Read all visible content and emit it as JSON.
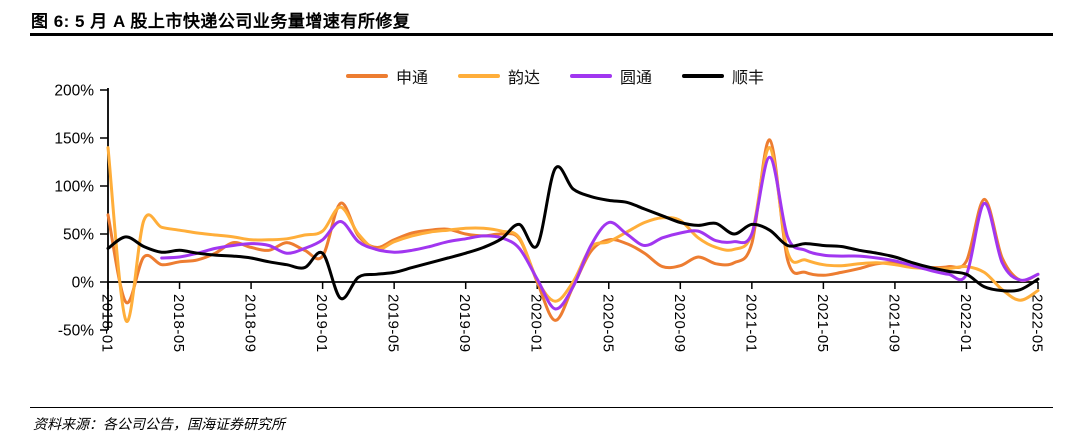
{
  "page": {
    "title": "图 6: 5 月 A 股上市快递公司业务量增速有所修复",
    "source": "资料来源：各公司公告，国海证券研究所"
  },
  "chart_data": {
    "type": "line",
    "title": "5 月 A 股上市快递公司业务量增速有所修复",
    "xlabel": "",
    "ylabel": "",
    "y_unit": "%",
    "ylim": [
      -50,
      200
    ],
    "y_tick_values": [
      200,
      150,
      100,
      50,
      0,
      -50
    ],
    "y_tick_labels": [
      "200%",
      "150%",
      "100%",
      "50%",
      "0%",
      "-50%"
    ],
    "x_tick_step": 4,
    "x_tick_labels": [
      "2018-01",
      "2018-05",
      "2018-09",
      "2019-01",
      "2019-05",
      "2019-09",
      "2020-01",
      "2020-05",
      "2020-09",
      "2021-01",
      "2021-05",
      "2021-09",
      "2022-01",
      "2022-05"
    ],
    "grid": false,
    "legend_position": "top",
    "x": [
      "2018-01",
      "2018-02",
      "2018-03",
      "2018-04",
      "2018-05",
      "2018-06",
      "2018-07",
      "2018-08",
      "2018-09",
      "2018-10",
      "2018-11",
      "2018-12",
      "2019-01",
      "2019-02",
      "2019-03",
      "2019-04",
      "2019-05",
      "2019-06",
      "2019-07",
      "2019-08",
      "2019-09",
      "2019-10",
      "2019-11",
      "2019-12",
      "2020-01",
      "2020-02",
      "2020-03",
      "2020-04",
      "2020-05",
      "2020-06",
      "2020-07",
      "2020-08",
      "2020-09",
      "2020-10",
      "2020-11",
      "2020-12",
      "2021-01",
      "2021-02",
      "2021-03",
      "2021-04",
      "2021-05",
      "2021-06",
      "2021-07",
      "2021-08",
      "2021-09",
      "2021-10",
      "2021-11",
      "2021-12",
      "2022-01",
      "2022-02",
      "2022-03",
      "2022-04",
      "2022-05"
    ],
    "series": [
      {
        "id": "shentong",
        "name": "申通",
        "color": "#ED7D31",
        "values": [
          70,
          -21,
          26,
          18,
          21,
          23,
          30,
          41,
          36,
          33,
          41,
          33,
          27,
          82,
          48,
          36,
          44,
          51,
          54,
          55,
          50,
          48,
          50,
          45,
          0,
          -40,
          -5,
          32,
          44,
          40,
          30,
          16,
          17,
          26,
          19,
          20,
          40,
          148,
          23,
          10,
          7,
          10,
          14,
          19,
          20,
          17,
          15,
          16,
          22,
          86,
          25,
          2,
          8
        ]
      },
      {
        "id": "yunda",
        "name": "韵达",
        "color": "#FFAE3A",
        "values": [
          140,
          -40,
          64,
          57,
          54,
          51,
          49,
          47,
          44,
          44,
          45,
          49,
          53,
          78,
          50,
          34,
          42,
          48,
          52,
          54,
          56,
          56,
          53,
          46,
          2,
          -20,
          0,
          36,
          42,
          52,
          62,
          67,
          64,
          46,
          36,
          34,
          50,
          140,
          31,
          23,
          18,
          17,
          19,
          20,
          18,
          15,
          14,
          14,
          16,
          10,
          -8,
          -19,
          -9
        ]
      },
      {
        "id": "yuantong",
        "name": "圆通",
        "color": "#A136F0",
        "values": [
          null,
          null,
          null,
          25,
          26,
          30,
          35,
          38,
          40,
          38,
          30,
          35,
          44,
          63,
          42,
          34,
          31,
          33,
          37,
          42,
          45,
          48,
          46,
          35,
          3,
          -28,
          -5,
          38,
          62,
          50,
          38,
          46,
          51,
          53,
          43,
          42,
          50,
          130,
          47,
          33,
          28,
          27,
          27,
          25,
          22,
          17,
          12,
          8,
          8,
          82,
          20,
          2,
          8
        ]
      },
      {
        "id": "shunfeng",
        "name": "顺丰",
        "color": "#000000",
        "values": [
          35,
          47,
          37,
          31,
          33,
          30,
          28,
          27,
          25,
          21,
          18,
          15,
          30,
          -17,
          5,
          8,
          10,
          15,
          20,
          25,
          30,
          36,
          45,
          60,
          38,
          118,
          97,
          89,
          85,
          83,
          76,
          69,
          62,
          59,
          61,
          50,
          60,
          54,
          38,
          40,
          38,
          37,
          33,
          30,
          26,
          20,
          15,
          11,
          8,
          -5,
          -9,
          -8,
          3
        ]
      }
    ]
  }
}
